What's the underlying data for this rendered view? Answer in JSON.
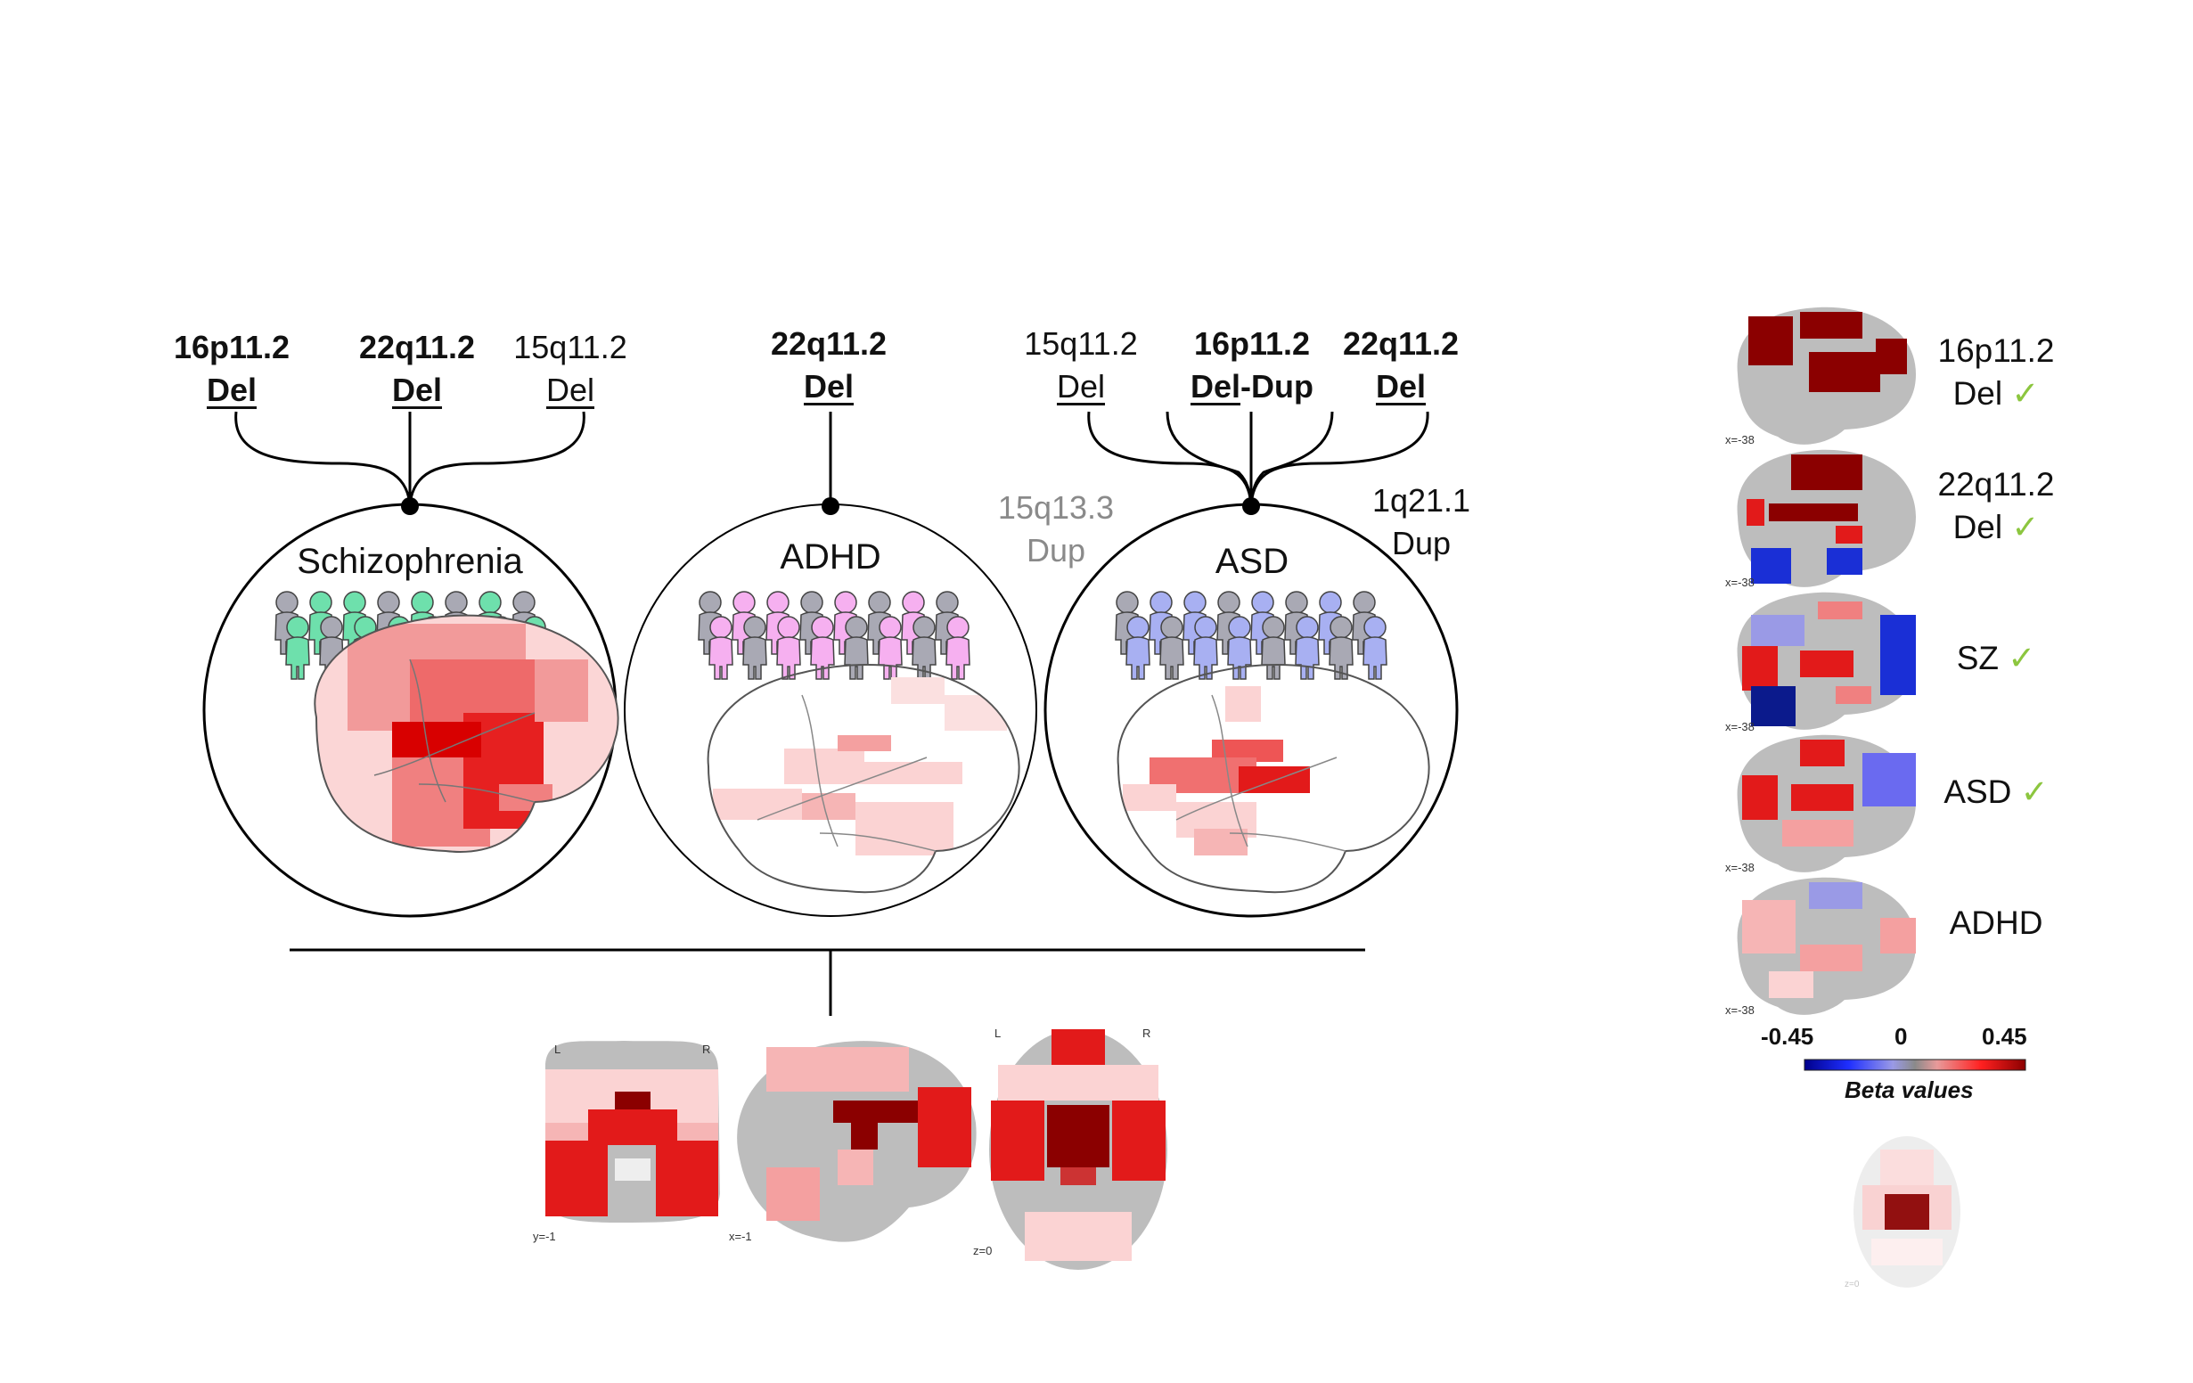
{
  "schizophrenia": {
    "title": "Schizophrenia",
    "cnvs": [
      {
        "name": "16p11.2",
        "type": "Del"
      },
      {
        "name": "22q11.2",
        "type": "Del"
      },
      {
        "name": "15q11.2",
        "type": "Del"
      }
    ],
    "people_color": "#6ee0ac"
  },
  "adhd": {
    "title": "ADHD",
    "cnvs": [
      {
        "name": "22q11.2",
        "type": "Del"
      }
    ],
    "people_color": "#f6b0f0"
  },
  "asd": {
    "title": "ASD",
    "cnvs": [
      {
        "name": "15q11.2",
        "type": "Del"
      },
      {
        "name": "16p11.2",
        "type_a": "Del",
        "type_sep": "-",
        "type_b": "Dup"
      },
      {
        "name": "22q11.2",
        "type": "Del"
      }
    ],
    "people_color": "#a8b0f2",
    "outside_grey": {
      "name": "15q13.3",
      "type": "Dup"
    },
    "outside_black": {
      "name": "1q21.1",
      "type": "Dup"
    }
  },
  "shared_maps": {
    "coronal": {
      "L": "L",
      "R": "R",
      "coord": "y=-1"
    },
    "sagittal": {
      "coord": "x=-1"
    },
    "axial": {
      "L": "L",
      "R": "R",
      "coord": "z=0"
    }
  },
  "side_panel": {
    "rows": [
      {
        "line1": "16p11.2",
        "line2": "Del",
        "check": "✓",
        "coord": "x=-38"
      },
      {
        "line1": "22q11.2",
        "line2": "Del",
        "check": "✓",
        "coord": "x=-38"
      },
      {
        "line1": "SZ",
        "line2": "",
        "check": "✓",
        "coord": "x=-38"
      },
      {
        "line1": "ASD",
        "line2": "",
        "check": "✓",
        "coord": "x=-38"
      },
      {
        "line1": "ADHD",
        "line2": "",
        "check": "",
        "coord": "x=-38"
      }
    ],
    "colorbar": {
      "min": "-0.45",
      "mid": "0",
      "max": "0.45",
      "label": "Beta values",
      "colors": [
        "#00008b",
        "#2233ff",
        "#8888ee",
        "#888888",
        "#ee8888",
        "#ff2222",
        "#8b0000"
      ]
    },
    "faded_axial_coord": "z=0"
  },
  "colors": {
    "dark_red": "#8b0000",
    "red": "#e31a1c",
    "pink": "#f4a6a6",
    "light_pink": "#fbd3d3",
    "blue": "#1f3fd6",
    "dark_blue": "#0b1a8c",
    "grey_brain": "#bdbdbd",
    "check_green": "#8cc63f"
  }
}
